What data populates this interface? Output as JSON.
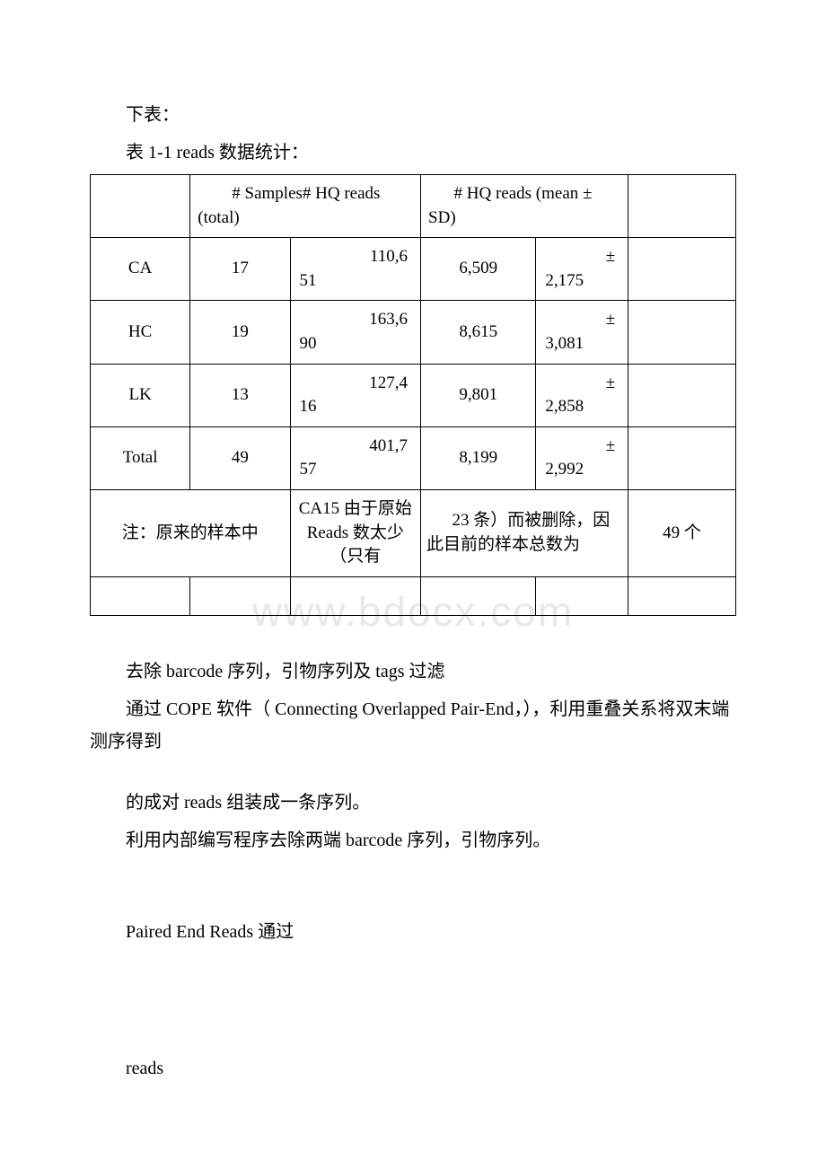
{
  "intro": {
    "line1": "下表：",
    "line2": "表 1-1 reads 数据统计："
  },
  "table": {
    "header": {
      "samples_hq_total": "# Samples# HQ reads (total)",
      "hq_mean_sd": "# HQ reads (mean ± SD)"
    },
    "rows": [
      {
        "label": "CA",
        "samples": "17",
        "total_top": "110,6",
        "total_bot": "51",
        "mean": "6,509",
        "sd_top": "±",
        "sd_bot": "2,175"
      },
      {
        "label": "HC",
        "samples": "19",
        "total_top": "163,6",
        "total_bot": "90",
        "mean": "8,615",
        "sd_top": "±",
        "sd_bot": "3,081"
      },
      {
        "label": "LK",
        "samples": "13",
        "total_top": "127,4",
        "total_bot": "16",
        "mean": "9,801",
        "sd_top": "±",
        "sd_bot": "2,858"
      },
      {
        "label": "Total",
        "samples": "49",
        "total_top": "401,7",
        "total_bot": "57",
        "mean": "8,199",
        "sd_top": "±",
        "sd_bot": "2,992"
      }
    ],
    "note": {
      "left": "注：原来的样本中",
      "mid": "CA15 由于原始 Reads 数太少（只有",
      "right": "23 条）而被删除，因此目前的样本总数为",
      "last": "49 个"
    }
  },
  "after": {
    "p1": "去除 barcode 序列，引物序列及 tags 过滤",
    "p2": "通过 COPE 软件（ Connecting Overlapped Pair-End，），利用重叠关系将双末端测序得到",
    "p3": "的成对 reads 组装成一条序列。",
    "p4": "利用内部编写程序去除两端 barcode 序列，引物序列。",
    "p5": "Paired End Reads 通过",
    "p6": "reads"
  },
  "watermark": "www.bdocx.com"
}
